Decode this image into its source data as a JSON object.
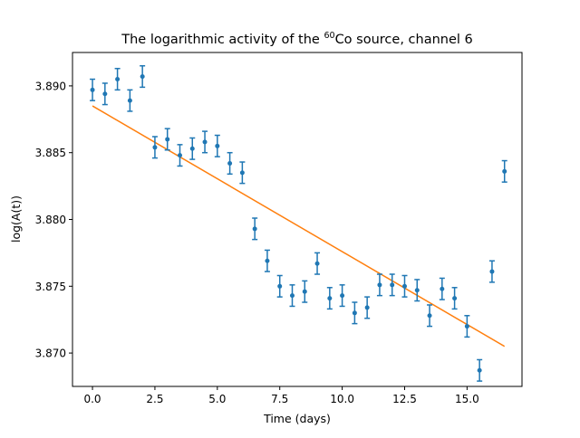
{
  "chart_data": {
    "type": "scatter",
    "title": {
      "prefix": "The logarithmic activity of the ",
      "superscript": "60",
      "suffix": "Co source, channel 6"
    },
    "xlabel": "Time (days)",
    "ylabel": "log(A(t))",
    "xlim": [
      -0.8,
      17.2
    ],
    "ylim": [
      3.8675,
      3.8925
    ],
    "xticks": [
      0.0,
      2.5,
      5.0,
      7.5,
      10.0,
      12.5,
      15.0
    ],
    "xtick_labels": [
      "0.0",
      "2.5",
      "5.0",
      "7.5",
      "10.0",
      "12.5",
      "15.0"
    ],
    "yticks": [
      3.87,
      3.875,
      3.88,
      3.885,
      3.89
    ],
    "ytick_labels": [
      "3.870",
      "3.875",
      "3.880",
      "3.885",
      "3.890"
    ],
    "grid": false,
    "series": [
      {
        "kind": "errorbar",
        "color": "#1f77b4",
        "x": [
          0,
          0.5,
          1,
          1.5,
          2,
          2.5,
          3,
          3.5,
          4,
          4.5,
          5,
          5.5,
          6,
          6.5,
          7,
          7.5,
          8,
          8.5,
          9,
          9.5,
          10,
          10.5,
          11,
          11.5,
          12,
          12.5,
          13,
          13.5,
          14,
          14.5,
          15,
          15.5,
          16,
          16.5
        ],
        "y": [
          3.8897,
          3.8894,
          3.8905,
          3.8889,
          3.8907,
          3.8854,
          3.886,
          3.8848,
          3.8853,
          3.8858,
          3.8855,
          3.8842,
          3.8835,
          3.8793,
          3.8769,
          3.875,
          3.8743,
          3.8746,
          3.8767,
          3.8741,
          3.8743,
          3.873,
          3.8734,
          3.8751,
          3.8751,
          3.875,
          3.8747,
          3.8728,
          3.8748,
          3.8741,
          3.872,
          3.8687,
          3.8761,
          3.8836
        ],
        "yerr": [
          0.0008,
          0.0008,
          0.0008,
          0.0008,
          0.0008,
          0.0008,
          0.0008,
          0.0008,
          0.0008,
          0.0008,
          0.0008,
          0.0008,
          0.0008,
          0.0008,
          0.0008,
          0.0008,
          0.0008,
          0.0008,
          0.0008,
          0.0008,
          0.0008,
          0.0008,
          0.0008,
          0.0008,
          0.0008,
          0.0008,
          0.0008,
          0.0008,
          0.0008,
          0.0008,
          0.0008,
          0.0008,
          0.0008,
          0.0008
        ]
      },
      {
        "kind": "line",
        "color": "#ff7f0e",
        "x": [
          0,
          16.5
        ],
        "y": [
          3.8885,
          3.8705
        ]
      }
    ]
  }
}
